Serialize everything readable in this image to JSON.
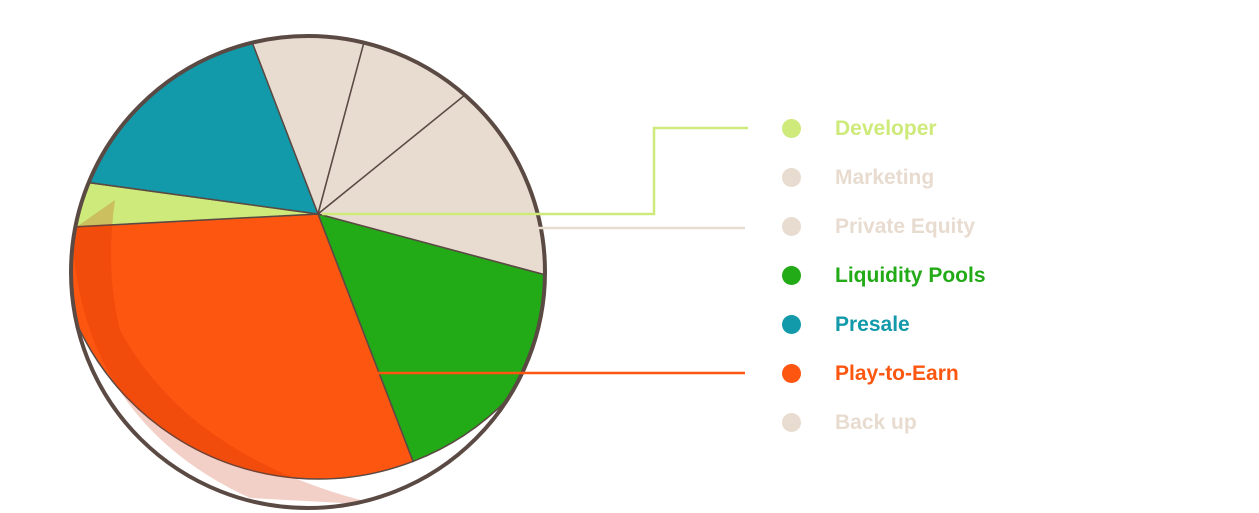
{
  "chart_data": {
    "type": "pie",
    "title": "",
    "slices": [
      {
        "label": "Developer",
        "value": 3,
        "color": "#cdea7a"
      },
      {
        "label": "Marketing",
        "value": 10,
        "color": "#e8dcd0"
      },
      {
        "label": "Private Equity",
        "value": 10,
        "color": "#e8dcd0"
      },
      {
        "label": "Liquidity Pools",
        "value": 15,
        "color": "#22aa17"
      },
      {
        "label": "Presale",
        "value": 17,
        "color": "#129aaa"
      },
      {
        "label": "Play-to-Earn",
        "value": 30,
        "color": "#fd5610"
      },
      {
        "label": "Back up",
        "value": 15,
        "color": "#e8dcd0"
      }
    ],
    "legend_placement": "right",
    "outline_color": "#5b4a43"
  }
}
